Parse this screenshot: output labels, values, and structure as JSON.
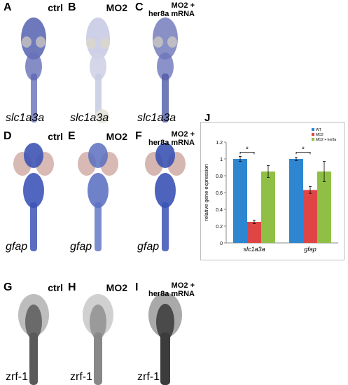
{
  "panels": [
    {
      "letter": "A",
      "condition": "ctrl",
      "gene": "slc1a3a"
    },
    {
      "letter": "B",
      "condition": "MO2",
      "gene": "slc1a3a"
    },
    {
      "letter": "C",
      "condition": "MO2 +",
      "condition2": "her8a mRNA",
      "gene": "slc1a3a"
    },
    {
      "letter": "D",
      "condition": "ctrl",
      "gene": "gfap"
    },
    {
      "letter": "E",
      "condition": "MO2",
      "gene": "gfap"
    },
    {
      "letter": "F",
      "condition": "MO2 +",
      "condition2": "her8a mRNA",
      "gene": "gfap"
    },
    {
      "letter": "G",
      "condition": "ctrl",
      "gene": "zrf-1"
    },
    {
      "letter": "H",
      "condition": "MO2",
      "gene": "zrf-1"
    },
    {
      "letter": "I",
      "condition": "MO2 +",
      "condition2": "her8a mRNA",
      "gene": "zrf-1"
    }
  ],
  "chart_label": "J",
  "chart_data": {
    "type": "bar",
    "categories": [
      "slc1a3a",
      "gfap"
    ],
    "series": [
      {
        "name": "WT",
        "values": [
          1.0,
          1.0
        ],
        "errors": [
          0.03,
          0.02
        ],
        "color": "#2e86d1"
      },
      {
        "name": "MO2",
        "values": [
          0.25,
          0.63
        ],
        "errors": [
          0.02,
          0.04
        ],
        "color": "#e04545"
      },
      {
        "name": "MO2 + her8a",
        "values": [
          0.85,
          0.85
        ],
        "errors": [
          0.07,
          0.12
        ],
        "color": "#8fc045"
      }
    ],
    "ylabel": "relative gene expression",
    "ylim": [
      0,
      1.2
    ],
    "yticks": [
      "0",
      "0.2",
      "0.4",
      "0.6",
      "0.8",
      "1",
      "1.2"
    ],
    "significance": [
      "*",
      "*"
    ],
    "legend_position": "top-right",
    "grid": false
  }
}
